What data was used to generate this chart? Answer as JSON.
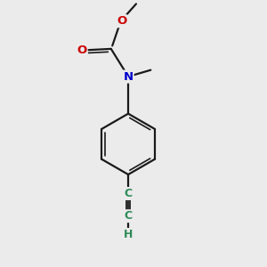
{
  "background_color": "#ebebeb",
  "atom_colors": {
    "C": "#2e8b57",
    "N": "#0000cc",
    "O": "#cc0000",
    "H": "#2e8b57"
  },
  "bond_color": "#1a1a1a",
  "bond_width": 1.6,
  "fig_size": [
    3.0,
    3.0
  ],
  "dpi": 100
}
